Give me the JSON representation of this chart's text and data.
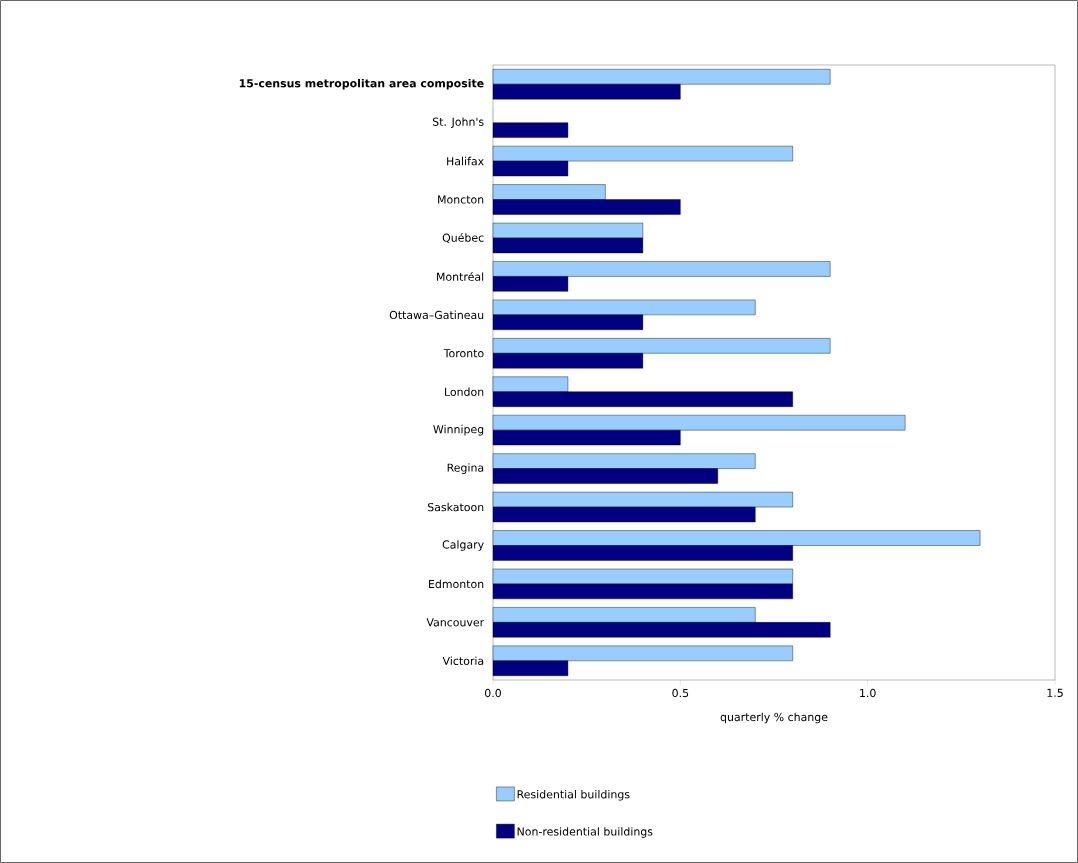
{
  "chart_data": {
    "type": "bar",
    "orientation": "horizontal",
    "xlabel": "quarterly % change",
    "categories": [
      "**15-census metropolitan area composite**",
      "St. John's",
      "Halifax",
      "Moncton",
      "Québec",
      "Montréal",
      "Ottawa–Gatineau",
      "Toronto",
      "London",
      "Winnipeg",
      "Regina",
      "Saskatoon",
      "Calgary",
      "Edmonton",
      "Vancouver",
      "Victoria"
    ],
    "series": [
      {
        "name": "Residential buildings",
        "color": "#99ccff",
        "values": [
          0.9,
          0.0,
          0.8,
          0.3,
          0.4,
          0.9,
          0.7,
          0.9,
          0.2,
          1.1,
          0.7,
          0.8,
          1.3,
          0.8,
          0.7,
          0.8
        ]
      },
      {
        "name": "Non-residential buildings",
        "color": "#000080",
        "values": [
          0.5,
          0.2,
          0.2,
          0.5,
          0.4,
          0.2,
          0.4,
          0.4,
          0.8,
          0.5,
          0.6,
          0.7,
          0.8,
          0.8,
          0.9,
          0.2
        ]
      }
    ],
    "xlim": [
      0,
      1.5
    ],
    "xticks": [
      {
        "value": 0,
        "label": "0.0"
      },
      {
        "value": 0.5,
        "label": "0.5"
      },
      {
        "value": 1.0,
        "label": "1.0"
      },
      {
        "value": 1.5,
        "label": "1.5"
      }
    ],
    "grid": false,
    "legend": "bottom"
  }
}
